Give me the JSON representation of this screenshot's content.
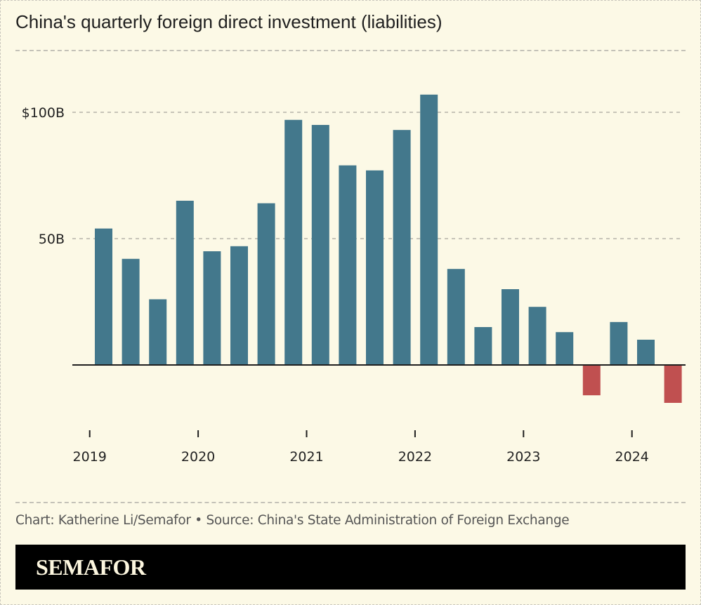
{
  "title": "China's quarterly foreign direct investment (liabilities)",
  "credit": "Chart: Katherine Li/Semafor • Source: China's State Administration of Foreign Exchange",
  "brand": "SEMAFOR",
  "colors": {
    "background": "#fcf9e6",
    "positive": "#43788c",
    "negative": "#c05050",
    "axis": "#1f1f1f",
    "grid": "#b5b3a8"
  },
  "chart_data": {
    "type": "bar",
    "title": "China's quarterly foreign direct investment (liabilities)",
    "xlabel": "",
    "ylabel": "",
    "unit": "USD billions",
    "ylim": [
      -25,
      110
    ],
    "grid": true,
    "yticks": [
      {
        "value": 100,
        "label": "$100B"
      },
      {
        "value": 50,
        "label": "50B"
      }
    ],
    "xticks": [
      {
        "before_index": 0,
        "label": "2019"
      },
      {
        "before_index": 4,
        "label": "2020"
      },
      {
        "before_index": 8,
        "label": "2021"
      },
      {
        "before_index": 12,
        "label": "2022"
      },
      {
        "before_index": 16,
        "label": "2023"
      },
      {
        "before_index": 20,
        "label": "2024"
      }
    ],
    "categories": [
      "2019 Q1",
      "2019 Q2",
      "2019 Q3",
      "2019 Q4",
      "2020 Q1",
      "2020 Q2",
      "2020 Q3",
      "2020 Q4",
      "2021 Q1",
      "2021 Q2",
      "2021 Q3",
      "2021 Q4",
      "2022 Q1",
      "2022 Q2",
      "2022 Q3",
      "2022 Q4",
      "2023 Q1",
      "2023 Q2",
      "2023 Q3",
      "2023 Q4",
      "2024 Q1",
      "2024 Q2"
    ],
    "values": [
      54,
      42,
      26,
      65,
      45,
      47,
      64,
      97,
      95,
      79,
      77,
      93,
      107,
      38,
      15,
      30,
      23,
      13,
      -12,
      17,
      10,
      -15
    ]
  }
}
